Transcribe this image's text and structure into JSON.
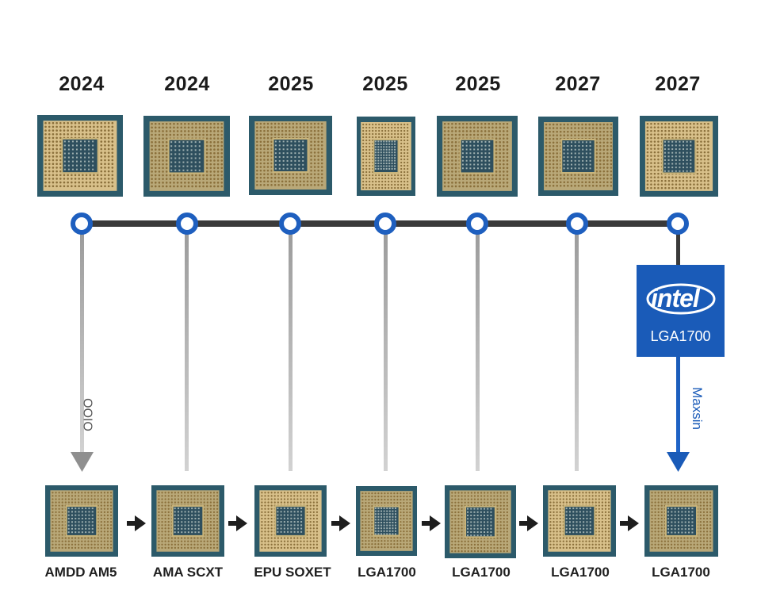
{
  "years": [
    "2024",
    "2024",
    "2025",
    "2025",
    "2025",
    "2027",
    "2027"
  ],
  "bottom_labels": [
    "AMDD AM5",
    "AMA SCXT",
    "EPU SOXET",
    "LGA1700",
    "LGA1700",
    "LGA1700",
    "LGA1700"
  ],
  "intel_badge": {
    "logo": "intel",
    "model": "LGA1700"
  },
  "side_text_left": "OIOO",
  "side_text_right": "Maxsin",
  "colors": {
    "accent": "#1a5bb8",
    "node_ring": "#1e5fbf",
    "timeline": "#3a3a3a",
    "pcb": "#2c5a6a",
    "gold": "#c7a45c"
  }
}
